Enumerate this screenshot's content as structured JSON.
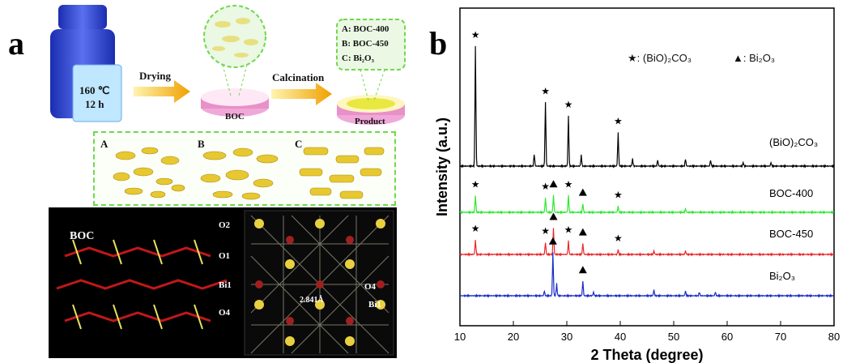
{
  "panel_a": {
    "label": "a",
    "autoclave": {
      "temp": "160 ℃",
      "time": "12 h"
    },
    "arrow1": "Drying",
    "arrow2": "Calcination",
    "dish1": "BOC",
    "dish2": "Product",
    "products": [
      "A: BOC-400",
      "B: BOC-450",
      "C: Bi₂O₃"
    ],
    "morph_labels": [
      "A",
      "B",
      "C"
    ],
    "crystal": {
      "title": "BOC",
      "atoms_left": [
        "O2",
        "O1",
        "Bi1",
        "O4"
      ],
      "atoms_right": [
        "O4",
        "Bi1"
      ],
      "distance": "2.841Å"
    }
  },
  "panel_b": {
    "label": "b",
    "legend": {
      "star": "★: (BiO)₂CO₃",
      "tri": "▲: Bi₂O₃"
    }
  },
  "chart_data": {
    "type": "line",
    "xlabel": "2 Theta (degree)",
    "ylabel": "Intensity (a.u.)",
    "xlim": [
      10,
      80
    ],
    "xticks": [
      10,
      20,
      30,
      40,
      50,
      60,
      70,
      80
    ],
    "grid": false,
    "series": [
      {
        "name": "(BiO)₂CO₃",
        "color": "#000000",
        "peaks": [
          [
            12.9,
            100
          ],
          [
            23.9,
            10
          ],
          [
            26.0,
            53
          ],
          [
            30.3,
            42
          ],
          [
            32.7,
            9
          ],
          [
            39.6,
            28
          ],
          [
            42.3,
            6
          ],
          [
            47.0,
            5
          ],
          [
            52.2,
            6
          ],
          [
            56.9,
            5
          ],
          [
            63.0,
            3
          ],
          [
            68.2,
            3
          ]
        ],
        "markers": [
          {
            "x": 12.9,
            "m": "star"
          },
          {
            "x": 26.0,
            "m": "star"
          },
          {
            "x": 30.3,
            "m": "star"
          },
          {
            "x": 39.6,
            "m": "star"
          }
        ]
      },
      {
        "name": "BOC-400",
        "color": "#2ee830",
        "peaks": [
          [
            12.9,
            14
          ],
          [
            26.0,
            12
          ],
          [
            27.5,
            14
          ],
          [
            30.3,
            14
          ],
          [
            33.0,
            7
          ],
          [
            39.6,
            5
          ],
          [
            52.2,
            3
          ]
        ],
        "markers": [
          {
            "x": 12.9,
            "m": "star"
          },
          {
            "x": 26.0,
            "m": "star"
          },
          {
            "x": 27.5,
            "m": "tri"
          },
          {
            "x": 30.3,
            "m": "star"
          },
          {
            "x": 33.0,
            "m": "tri"
          },
          {
            "x": 39.6,
            "m": "star"
          }
        ]
      },
      {
        "name": "BOC-450",
        "color": "#e8282b",
        "peaks": [
          [
            12.9,
            12
          ],
          [
            26.0,
            10
          ],
          [
            27.5,
            22
          ],
          [
            30.3,
            11
          ],
          [
            33.0,
            9
          ],
          [
            39.6,
            4
          ],
          [
            46.3,
            3
          ],
          [
            52.2,
            3
          ]
        ],
        "markers": [
          {
            "x": 12.9,
            "m": "star"
          },
          {
            "x": 26.0,
            "m": "star"
          },
          {
            "x": 27.5,
            "m": "tri"
          },
          {
            "x": 30.3,
            "m": "star"
          },
          {
            "x": 33.0,
            "m": "tri"
          },
          {
            "x": 39.6,
            "m": "star"
          }
        ]
      },
      {
        "name": "Bi₂O₃",
        "color": "#1a2cc8",
        "peaks": [
          [
            25.8,
            4
          ],
          [
            27.4,
            36
          ],
          [
            28.1,
            10
          ],
          [
            33.0,
            12
          ],
          [
            35.0,
            3
          ],
          [
            46.3,
            5
          ],
          [
            52.2,
            4
          ],
          [
            54.8,
            3
          ],
          [
            57.8,
            3
          ]
        ],
        "markers": [
          {
            "x": 27.4,
            "m": "tri"
          },
          {
            "x": 33.0,
            "m": "tri"
          }
        ]
      }
    ]
  }
}
